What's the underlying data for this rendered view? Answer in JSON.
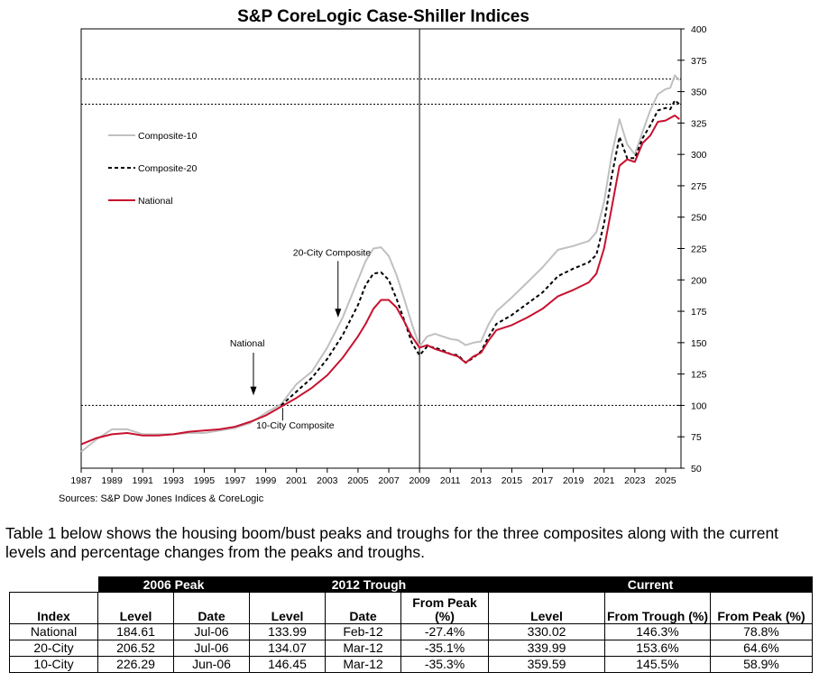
{
  "chart_data": {
    "type": "line",
    "title": "S&P CoreLogic Case-Shiller Indices",
    "source": "Sources:  S&P Dow Jones Indices & CoreLogic",
    "x_ticks": [
      "1987",
      "1989",
      "1991",
      "1993",
      "1995",
      "1997",
      "1999",
      "2001",
      "2003",
      "2005",
      "2007",
      "2009",
      "2011",
      "2013",
      "2015",
      "2017",
      "2019",
      "2021",
      "2023",
      "2025"
    ],
    "xlim": [
      1987,
      2026
    ],
    "y_ticks": [
      "50",
      "75",
      "100",
      "125",
      "150",
      "175",
      "200",
      "225",
      "250",
      "275",
      "300",
      "325",
      "350",
      "375",
      "400"
    ],
    "ylim": [
      50,
      400
    ],
    "y_axis_position": "right",
    "reference_lines": [
      100,
      340,
      360
    ],
    "vertical_line_x": 2009.0,
    "legend": {
      "placement": "upper-left",
      "entries": [
        "Composite-10",
        "Composite-20",
        "National"
      ]
    },
    "annotations": [
      {
        "text": "20-City Composite",
        "x": 2003.3,
        "y": 222
      },
      {
        "text": "National",
        "x": 1997.8,
        "y": 150
      },
      {
        "text": "10-City Composite",
        "x": 2000.1,
        "y": 93
      }
    ],
    "series": [
      {
        "name": "Composite-10",
        "color": "#c0c0c0",
        "dash": "solid",
        "x": [
          1987.0,
          1988.0,
          1989.0,
          1990.0,
          1991.0,
          1992.0,
          1993.0,
          1994.0,
          1995.0,
          1996.0,
          1997.0,
          1998.0,
          1999.0,
          2000.0,
          2001.0,
          2002.0,
          2003.0,
          2004.0,
          2005.0,
          2005.5,
          2006.0,
          2006.5,
          2007.0,
          2007.5,
          2008.0,
          2008.5,
          2009.0,
          2009.5,
          2010.0,
          2010.5,
          2011.0,
          2011.5,
          2012.0,
          2012.5,
          2013.0,
          2013.5,
          2014.0,
          2015.0,
          2016.0,
          2017.0,
          2018.0,
          2019.0,
          2020.0,
          2020.5,
          2021.0,
          2021.5,
          2022.0,
          2022.5,
          2023.0,
          2023.5,
          2024.0,
          2024.5,
          2025.0,
          2025.3,
          2025.6,
          2025.9
        ],
        "values": [
          63,
          73,
          81,
          81,
          77,
          77,
          77,
          78,
          78,
          80,
          82,
          86,
          94,
          101,
          117,
          127,
          146,
          170,
          200,
          215,
          225,
          226,
          219,
          204,
          185,
          165,
          147,
          155,
          157,
          155,
          153,
          152,
          148,
          150,
          151,
          165,
          175,
          186,
          198,
          210,
          224,
          227,
          231,
          238,
          262,
          300,
          328,
          308,
          300,
          318,
          335,
          348,
          352,
          353,
          363,
          359
        ]
      },
      {
        "name": "Composite-20",
        "color": "#000000",
        "dash": "dashed",
        "x": [
          2000.0,
          2001.0,
          2002.0,
          2003.0,
          2004.0,
          2005.0,
          2005.5,
          2006.0,
          2006.5,
          2007.0,
          2007.5,
          2008.0,
          2008.5,
          2009.0,
          2009.5,
          2010.0,
          2010.5,
          2011.0,
          2011.5,
          2012.0,
          2012.5,
          2013.0,
          2013.5,
          2014.0,
          2015.0,
          2016.0,
          2017.0,
          2018.0,
          2019.0,
          2020.0,
          2020.5,
          2021.0,
          2021.5,
          2022.0,
          2022.5,
          2023.0,
          2023.5,
          2024.0,
          2024.5,
          2025.0,
          2025.3,
          2025.6,
          2025.9
        ],
        "values": [
          100,
          111,
          122,
          137,
          156,
          180,
          196,
          205,
          206,
          200,
          185,
          168,
          150,
          140,
          147,
          146,
          144,
          141,
          140,
          134,
          138,
          143,
          155,
          165,
          172,
          181,
          190,
          203,
          209,
          214,
          220,
          245,
          283,
          314,
          297,
          297,
          313,
          323,
          335,
          337,
          336,
          343,
          340
        ]
      },
      {
        "name": "National",
        "color": "#c8102e",
        "dash": "solid",
        "x": [
          1987.0,
          1988.0,
          1989.0,
          1990.0,
          1991.0,
          1992.0,
          1993.0,
          1994.0,
          1995.0,
          1996.0,
          1997.0,
          1998.0,
          1999.0,
          2000.0,
          2001.0,
          2002.0,
          2003.0,
          2004.0,
          2005.0,
          2005.5,
          2006.0,
          2006.5,
          2007.0,
          2007.5,
          2008.0,
          2008.5,
          2009.0,
          2009.5,
          2010.0,
          2010.5,
          2011.0,
          2011.5,
          2012.0,
          2012.5,
          2013.0,
          2013.5,
          2014.0,
          2015.0,
          2016.0,
          2017.0,
          2018.0,
          2019.0,
          2020.0,
          2020.5,
          2021.0,
          2021.5,
          2022.0,
          2022.5,
          2023.0,
          2023.5,
          2024.0,
          2024.5,
          2025.0,
          2025.3,
          2025.6,
          2025.9
        ],
        "values": [
          69,
          74,
          77,
          78,
          76,
          76,
          77,
          79,
          80,
          81,
          83,
          87,
          92,
          99,
          106,
          114,
          124,
          138,
          155,
          165,
          177,
          184,
          184,
          178,
          167,
          155,
          146,
          148,
          145,
          143,
          141,
          139,
          134,
          139,
          142,
          152,
          160,
          164,
          170,
          177,
          187,
          192,
          198,
          205,
          225,
          258,
          291,
          296,
          294,
          309,
          315,
          326,
          327,
          329,
          331,
          328
        ]
      }
    ]
  },
  "description": {
    "text": "Table 1 below shows the housing boom/bust peaks and troughs for the three composites along with the current levels and percentage changes from the peaks and troughs."
  },
  "table": {
    "group_headers": [
      "2006 Peak",
      "2012 Trough",
      "Current"
    ],
    "columns": [
      "Index",
      "Level",
      "Date",
      "Level",
      "Date",
      "From Peak (%)",
      "Level",
      "From Trough (%)",
      "From Peak (%)"
    ],
    "rows": [
      [
        "National",
        "184.61",
        "Jul-06",
        "133.99",
        "Feb-12",
        "-27.4%",
        "330.02",
        "146.3%",
        "78.8%"
      ],
      [
        "20-City",
        "206.52",
        "Jul-06",
        "134.07",
        "Mar-12",
        "-35.1%",
        "339.99",
        "153.6%",
        "64.6%"
      ],
      [
        "10-City",
        "226.29",
        "Jun-06",
        "146.45",
        "Mar-12",
        "-35.3%",
        "359.59",
        "145.5%",
        "58.9%"
      ]
    ]
  }
}
